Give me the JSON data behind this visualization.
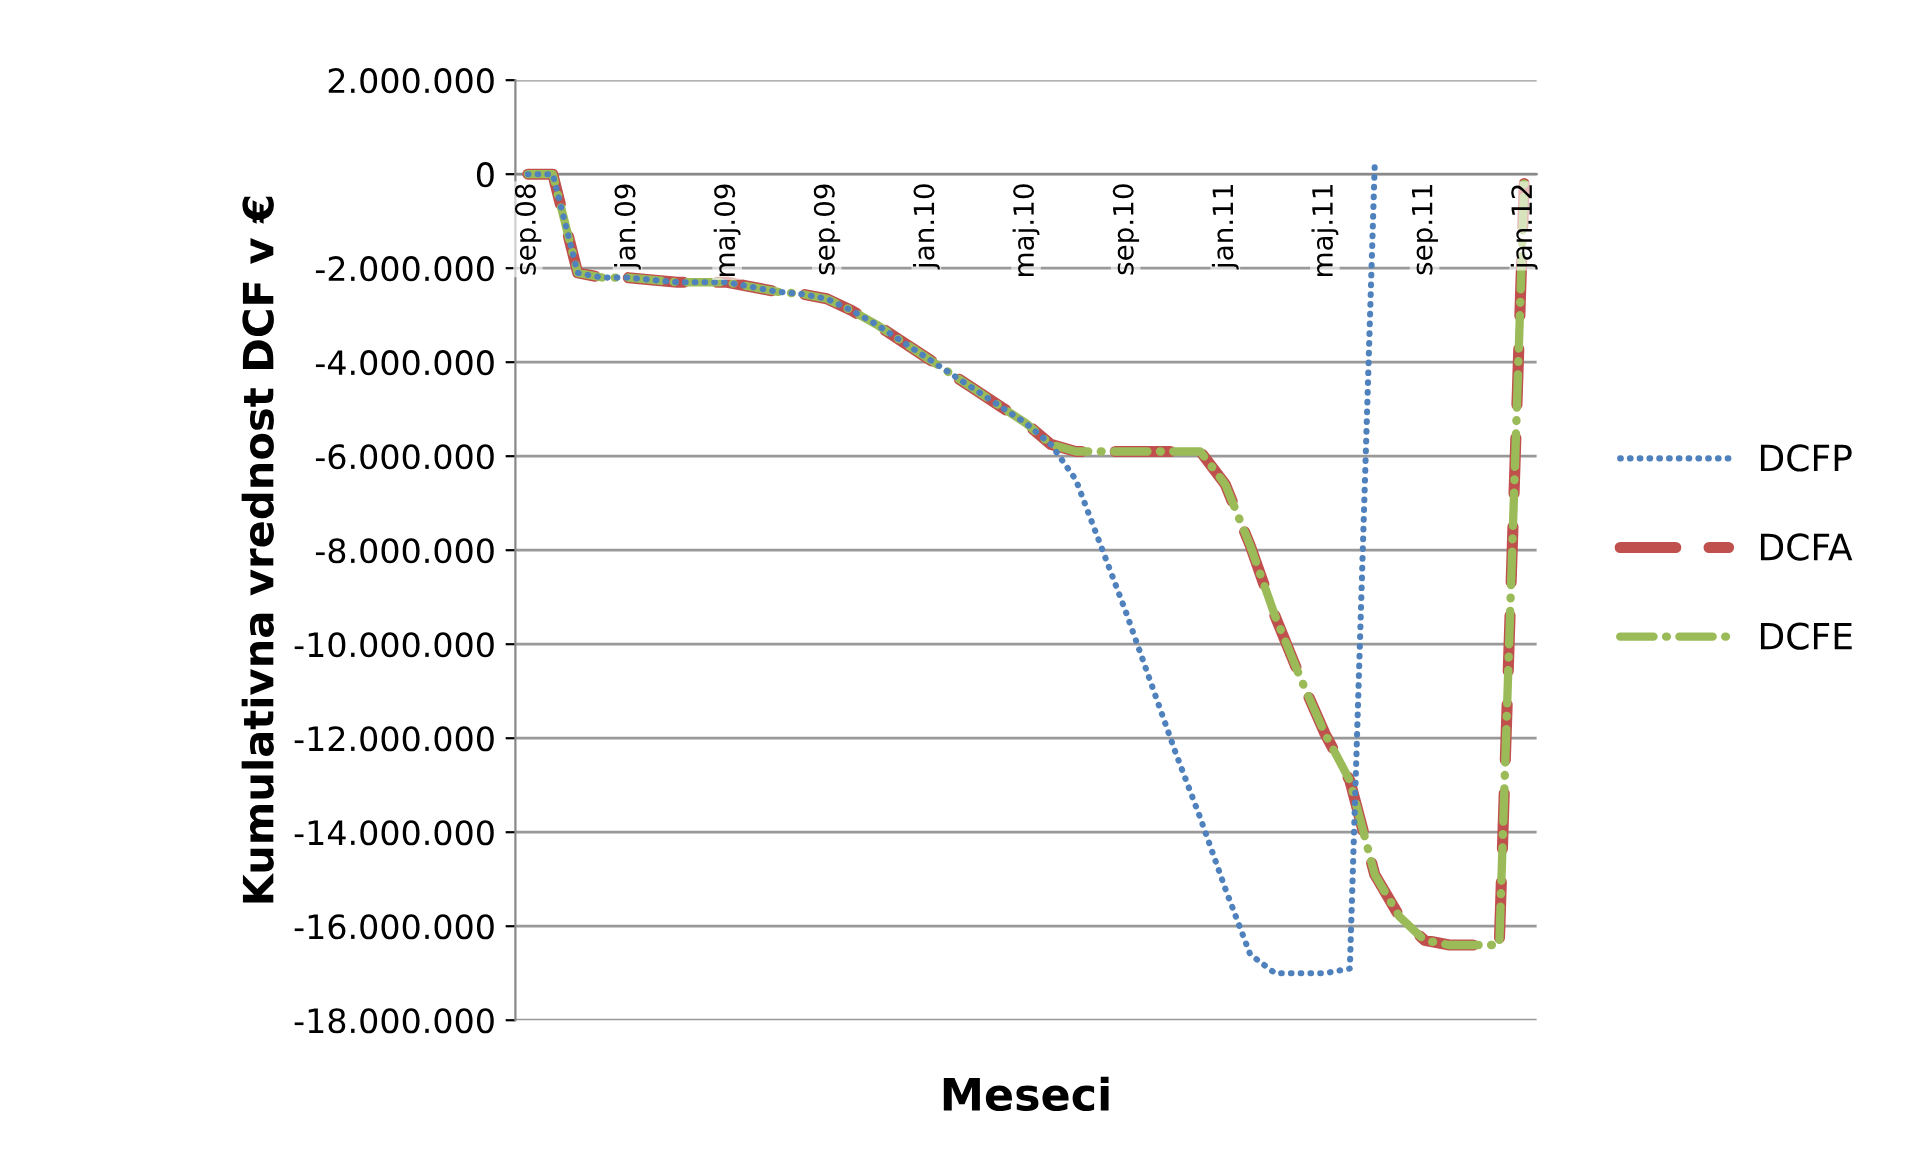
{
  "chart_data": {
    "type": "line",
    "xlabel": "Meseci",
    "ylabel": "Kumulativna vrednost DCF v €",
    "categories": [
      "sep.08",
      null,
      null,
      null,
      "jan.09",
      null,
      null,
      null,
      "maj.09",
      null,
      null,
      null,
      "sep.09",
      null,
      null,
      null,
      "jan.10",
      null,
      null,
      null,
      "maj.10",
      null,
      null,
      null,
      "sep.10",
      null,
      null,
      null,
      "jan.11",
      null,
      null,
      null,
      "maj.11",
      null,
      null,
      null,
      "sep.11",
      null,
      null,
      null,
      "jan.12"
    ],
    "series": [
      {
        "name": "DCFP",
        "color": "#4f81bd",
        "line_style": "dotted",
        "values": [
          0,
          0,
          -2100000,
          -2200000,
          -2200000,
          -2250000,
          -2300000,
          -2300000,
          -2300000,
          -2400000,
          -2500000,
          -2550000,
          -2650000,
          -2900000,
          -3200000,
          -3550000,
          -3900000,
          -4250000,
          -4600000,
          -4950000,
          -5300000,
          -5750000,
          -6500000,
          -7900000,
          -9300000,
          -10800000,
          -12300000,
          -13700000,
          -15200000,
          -16600000,
          -17000000,
          -17000000,
          -17000000,
          -16900000,
          200000,
          null,
          null,
          null,
          null,
          null,
          null
        ]
      },
      {
        "name": "DCFA",
        "color": "#c0504d",
        "line_style": "dashed",
        "values": [
          0,
          0,
          -2100000,
          -2200000,
          -2200000,
          -2250000,
          -2300000,
          -2300000,
          -2300000,
          -2400000,
          -2500000,
          -2550000,
          -2650000,
          -2900000,
          -3200000,
          -3550000,
          -3900000,
          -4250000,
          -4600000,
          -4950000,
          -5300000,
          -5750000,
          -5900000,
          -5900000,
          -5900000,
          -5900000,
          -5900000,
          -5900000,
          -6600000,
          -7900000,
          -9400000,
          -10700000,
          -11900000,
          -12900000,
          -14900000,
          -15800000,
          -16300000,
          -16400000,
          -16400000,
          -16400000,
          -200000
        ]
      },
      {
        "name": "DCFE",
        "color": "#9bbb59",
        "line_style": "dashdot",
        "values": [
          0,
          0,
          -2100000,
          -2200000,
          -2200000,
          -2250000,
          -2300000,
          -2300000,
          -2300000,
          -2400000,
          -2500000,
          -2550000,
          -2650000,
          -2900000,
          -3200000,
          -3550000,
          -3900000,
          -4250000,
          -4600000,
          -4950000,
          -5300000,
          -5750000,
          -5900000,
          -5900000,
          -5900000,
          -5900000,
          -5900000,
          -5900000,
          -6600000,
          -7900000,
          -9400000,
          -10700000,
          -11900000,
          -12900000,
          -14900000,
          -15800000,
          -16300000,
          -16400000,
          -16400000,
          -16400000,
          -200000
        ]
      }
    ],
    "ylim": [
      -18000000,
      2000000
    ],
    "yticks": [
      {
        "value": 2000000,
        "label": "2.000.000"
      },
      {
        "value": 0,
        "label": "0"
      },
      {
        "value": -2000000,
        "label": "-2.000.000"
      },
      {
        "value": -4000000,
        "label": "-4.000.000"
      },
      {
        "value": -6000000,
        "label": "-6.000.000"
      },
      {
        "value": -8000000,
        "label": "-8.000.000"
      },
      {
        "value": -10000000,
        "label": "-10.000.000"
      },
      {
        "value": -12000000,
        "label": "-12.000.000"
      },
      {
        "value": -14000000,
        "label": "-14.000.000"
      },
      {
        "value": -16000000,
        "label": "-16.000.000"
      },
      {
        "value": -18000000,
        "label": "-18.000.000"
      }
    ],
    "grid": "y",
    "legend": "right",
    "marker": "none"
  }
}
